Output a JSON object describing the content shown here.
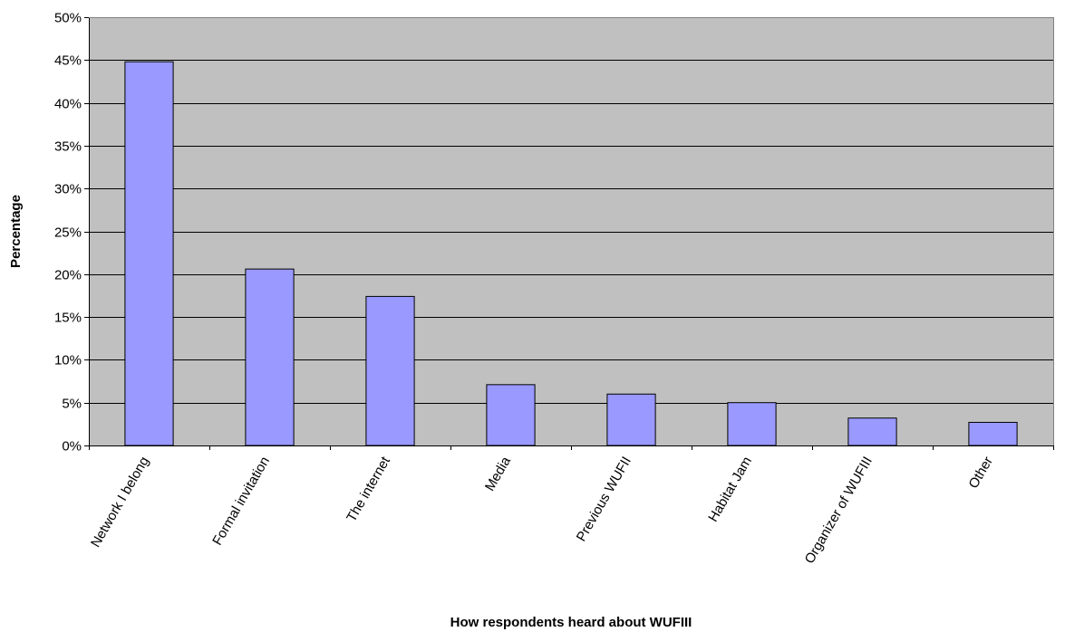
{
  "chart_data": {
    "type": "bar",
    "title": "",
    "xlabel": "How respondents heard about WUFIII",
    "ylabel": "Percentage",
    "categories": [
      "Network I belong",
      "Formal invitation",
      "The internet",
      "Media",
      "Previous WUFII",
      "Habitat Jam",
      "Organizer of WUFIII",
      "Other"
    ],
    "values": [
      44.8,
      20.6,
      17.4,
      7.1,
      6.0,
      5.0,
      3.2,
      2.7
    ],
    "ylim": [
      0,
      50
    ],
    "yticks": [
      0,
      5,
      10,
      15,
      20,
      25,
      30,
      35,
      40,
      45,
      50
    ],
    "ytick_labels": [
      "0%",
      "5%",
      "10%",
      "15%",
      "20%",
      "25%",
      "30%",
      "35%",
      "40%",
      "45%",
      "50%"
    ],
    "grid": true,
    "colors": {
      "plot_bg": "#c0c0c0",
      "bar": "#9999ff",
      "bar_edge": "#000000",
      "grid": "#000000"
    }
  }
}
